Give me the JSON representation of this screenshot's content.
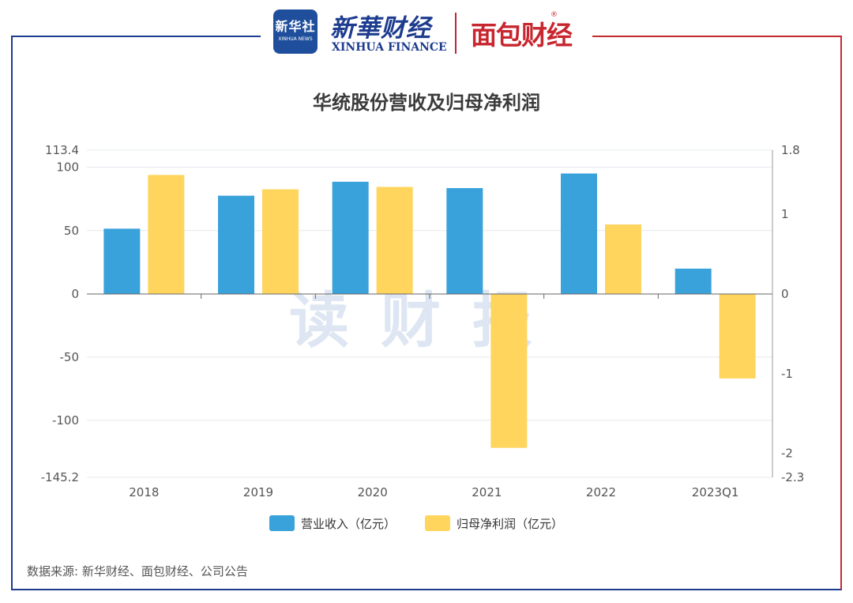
{
  "header": {
    "logo_main": "新华社",
    "logo_sub": "XINHUA NEWS",
    "brand_cn": "新華财经",
    "brand_en": "XINHUA FINANCE",
    "brand_partner": "面包财经",
    "registered_mark": "®"
  },
  "watermark": "读财报",
  "source_note": "数据来源: 新华财经、面包财经、公司公告",
  "colors": {
    "revenue": "#3aa2db",
    "profit": "#ffd55e",
    "frame_blue": "#1d3c8f",
    "frame_red": "#c32b33",
    "watermark": "#dde6f2"
  },
  "chart_data": {
    "type": "bar",
    "title": "华统股份营收及归母净利润",
    "categories": [
      "2018",
      "2019",
      "2020",
      "2021",
      "2022",
      "2023Q1"
    ],
    "series": [
      {
        "name": "营业收入（亿元）",
        "axis": "left",
        "values": [
          51.5,
          77.5,
          88.5,
          83.5,
          95,
          20
        ]
      },
      {
        "name": "归母净利润（亿元）",
        "axis": "right",
        "values": [
          1.49,
          1.31,
          1.34,
          -1.93,
          0.87,
          -1.06
        ]
      }
    ],
    "y_left": {
      "ylim": [
        -145.2,
        113.4
      ],
      "ticks": [
        "113.4",
        "100",
        "50",
        "0",
        "-50",
        "-100",
        "-145.2"
      ]
    },
    "y_right": {
      "ylim": [
        -2.3,
        1.8
      ],
      "ticks": [
        "1.8",
        "1",
        "0",
        "-1",
        "-2",
        "-2.3"
      ]
    },
    "legend_position": "bottom",
    "grid": true
  }
}
